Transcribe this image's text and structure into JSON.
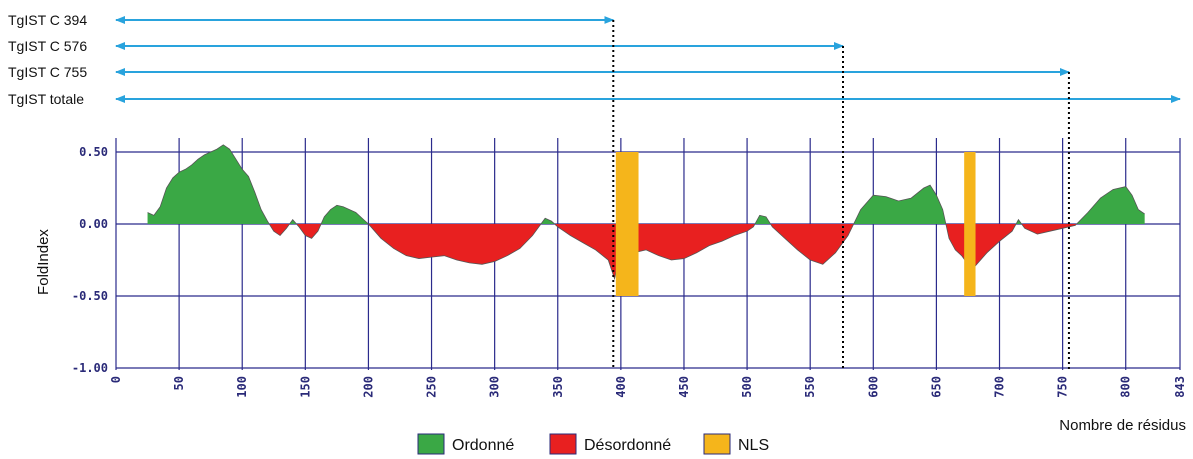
{
  "chart_data": {
    "type": "area",
    "ylabel": "FoldIndex",
    "xlabel": "Nombre de résidus",
    "xlim": [
      0,
      843
    ],
    "ylim": [
      -1.0,
      0.5
    ],
    "x_ticks": [
      "0",
      "50",
      "100",
      "150",
      "200",
      "250",
      "300",
      "350",
      "400",
      "450",
      "500",
      "550",
      "600",
      "650",
      "700",
      "750",
      "800",
      "843"
    ],
    "y_ticks": [
      "0.50",
      "0.00",
      "-0.50",
      "-1.00"
    ],
    "grid": true,
    "constructs": [
      {
        "label": "TgIST C 394",
        "end_residue": 394
      },
      {
        "label": "TgIST C 576",
        "end_residue": 576
      },
      {
        "label": "TgIST C 755",
        "end_residue": 755
      },
      {
        "label": "TgIST totale",
        "end_residue": 843
      }
    ],
    "foldindex_profile": {
      "x": [
        25,
        30,
        35,
        40,
        45,
        50,
        55,
        60,
        65,
        70,
        75,
        80,
        85,
        90,
        95,
        100,
        105,
        110,
        115,
        120,
        125,
        130,
        135,
        140,
        145,
        150,
        155,
        160,
        165,
        170,
        175,
        180,
        185,
        190,
        195,
        200,
        205,
        210,
        220,
        230,
        240,
        250,
        260,
        270,
        280,
        290,
        300,
        310,
        320,
        330,
        335,
        340,
        345,
        350,
        355,
        360,
        370,
        380,
        390,
        395,
        400,
        405,
        410,
        420,
        430,
        440,
        450,
        460,
        470,
        480,
        490,
        500,
        505,
        510,
        515,
        520,
        530,
        540,
        550,
        560,
        570,
        580,
        590,
        600,
        610,
        620,
        630,
        640,
        645,
        650,
        655,
        660,
        665,
        670,
        675,
        680,
        685,
        690,
        700,
        710,
        715,
        720,
        730,
        740,
        750,
        760,
        770,
        780,
        790,
        800,
        805,
        810,
        815
      ],
      "y": [
        0.08,
        0.06,
        0.12,
        0.25,
        0.32,
        0.36,
        0.38,
        0.41,
        0.45,
        0.48,
        0.5,
        0.52,
        0.55,
        0.52,
        0.45,
        0.38,
        0.33,
        0.22,
        0.1,
        0.02,
        -0.05,
        -0.08,
        -0.03,
        0.03,
        -0.02,
        -0.08,
        -0.1,
        -0.05,
        0.05,
        0.1,
        0.13,
        0.12,
        0.1,
        0.08,
        0.04,
        0.0,
        -0.05,
        -0.1,
        -0.17,
        -0.22,
        -0.24,
        -0.23,
        -0.22,
        -0.25,
        -0.27,
        -0.28,
        -0.26,
        -0.22,
        -0.17,
        -0.08,
        -0.02,
        0.04,
        0.02,
        -0.02,
        -0.05,
        -0.08,
        -0.13,
        -0.18,
        -0.25,
        -0.38,
        -0.18,
        -0.22,
        -0.2,
        -0.18,
        -0.22,
        -0.25,
        -0.24,
        -0.2,
        -0.15,
        -0.12,
        -0.08,
        -0.05,
        -0.02,
        0.06,
        0.05,
        -0.02,
        -0.1,
        -0.18,
        -0.25,
        -0.28,
        -0.2,
        -0.08,
        0.1,
        0.2,
        0.19,
        0.16,
        0.18,
        0.25,
        0.27,
        0.2,
        0.1,
        -0.1,
        -0.18,
        -0.22,
        -0.28,
        -0.3,
        -0.25,
        -0.2,
        -0.12,
        -0.05,
        0.03,
        -0.03,
        -0.07,
        -0.05,
        -0.03,
        -0.01,
        0.08,
        0.18,
        0.24,
        0.26,
        0.2,
        0.1,
        0.07
      ]
    },
    "nls_regions": [
      {
        "start": 396,
        "end": 414,
        "y_top": 0.5,
        "y_bottom": -0.5
      },
      {
        "start": 672,
        "end": 681,
        "y_top": 0.5,
        "y_bottom": -0.5
      }
    ],
    "colors": {
      "ordered": "#3aa845",
      "disordered": "#e82020",
      "nls": "#f5b51b",
      "arrow": "#29a3dd",
      "grid": "#2b2b8c",
      "tick_text": "#2a2a78"
    },
    "legend": [
      {
        "key": "ordered",
        "label": "Ordonné"
      },
      {
        "key": "disordered",
        "label": "Désordonné"
      },
      {
        "key": "nls",
        "label": "NLS"
      }
    ]
  }
}
